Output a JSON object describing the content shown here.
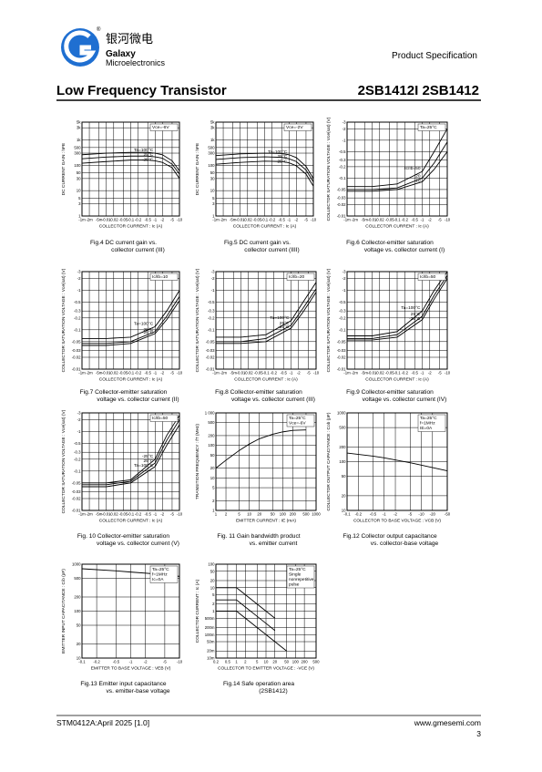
{
  "header": {
    "brand_cn": "银河微电",
    "brand": "Galaxy",
    "brand_sub": "Microelectronics",
    "registered": "®",
    "spec": "Product Specification",
    "title": "Low Frequency Transistor",
    "part": "2SB1412I 2SB1412"
  },
  "footer": {
    "doc": "STM0412A:April 2025 [1.0]",
    "url": "www.gmesemi.com",
    "page": "3"
  },
  "figures": [
    {
      "type": "line",
      "caption": [
        "Fig.4  DC current gain vs.",
        "collector current (III)"
      ],
      "ylabel": "DC CURRENT GAIN : hFE",
      "xlabel": "COLLECTOR CURRENT : Ic (A)",
      "notes": [
        "Vce=-6V"
      ],
      "log": true,
      "xlim": [
        -0.001,
        -10
      ],
      "ylim": [
        1,
        5000
      ],
      "xticks": [
        {
          "value": -0.001,
          "label": "-1m"
        },
        {
          "value": -0.002,
          "label": "-2m"
        },
        {
          "value": -0.005,
          "label": "-5m"
        },
        -0.01,
        -0.02,
        -0.05,
        -0.1,
        -0.2,
        -0.5,
        -1,
        -2,
        -5,
        -10
      ],
      "yticks": [
        1,
        3,
        5,
        10,
        30,
        50,
        100,
        300,
        500,
        {
          "value": 1000,
          "label": "1k"
        },
        {
          "value": 3000,
          "label": "3k"
        },
        {
          "value": 5000,
          "label": "5k"
        }
      ],
      "x": [
        -0.001,
        -0.01,
        -0.1,
        -0.5,
        -1,
        -2,
        -5,
        -10
      ],
      "series": [
        {
          "name": "Ta=100°C",
          "values": [
            260,
            300,
            320,
            320,
            300,
            260,
            150,
            60
          ]
        },
        {
          "name": "25°C",
          "values": [
            180,
            210,
            230,
            230,
            215,
            190,
            110,
            45
          ]
        },
        {
          "name": "-25°C",
          "values": [
            120,
            140,
            160,
            160,
            150,
            130,
            80,
            30
          ]
        }
      ]
    },
    {
      "type": "line",
      "caption": [
        "Fig.5  DC current gain vs.",
        "collector current (IIII)"
      ],
      "ylabel": "DC CURRENT GAIN : hFE",
      "xlabel": "COLLECTOR CURRENT : Ic (A)",
      "notes": [
        "Vce=-2V"
      ],
      "log": true,
      "xlim": [
        -0.001,
        -10
      ],
      "ylim": [
        1,
        5000
      ],
      "xticks": [
        {
          "value": -0.001,
          "label": "-1m"
        },
        {
          "value": -0.002,
          "label": "-2m"
        },
        {
          "value": -0.005,
          "label": "-5m"
        },
        -0.01,
        -0.02,
        -0.05,
        -0.1,
        -0.2,
        -0.5,
        -1,
        -2,
        -5,
        -10
      ],
      "yticks": [
        1,
        3,
        5,
        10,
        30,
        50,
        100,
        300,
        500,
        {
          "value": 1000,
          "label": "1k"
        },
        {
          "value": 3000,
          "label": "3k"
        },
        {
          "value": 5000,
          "label": "5k"
        }
      ],
      "x": [
        -0.001,
        -0.01,
        -0.1,
        -0.5,
        -1,
        -2,
        -5,
        -10
      ],
      "series": [
        {
          "name": "Ta=100°C",
          "values": [
            240,
            280,
            300,
            290,
            260,
            200,
            90,
            30
          ]
        },
        {
          "name": "25°C",
          "values": [
            170,
            200,
            215,
            205,
            180,
            140,
            65,
            22
          ]
        },
        {
          "name": "-25°C",
          "values": [
            110,
            130,
            145,
            140,
            125,
            95,
            45,
            15
          ]
        }
      ]
    },
    {
      "type": "line",
      "caption": [
        "Fig.6  Collector-emitter saturation",
        "voltage vs. collector current (I)"
      ],
      "ylabel": "COLLECTOR SATURATION VOLTAGE : Vce(sat) (V)",
      "xlabel": "COLLECTOR CURRENT : Ic (A)",
      "notes": [
        "Ta=25°C"
      ],
      "log": true,
      "xlim": [
        -0.001,
        -10
      ],
      "ylim": [
        -0.01,
        -3
      ],
      "xticks": [
        {
          "value": -0.001,
          "label": "-1m"
        },
        {
          "value": -0.002,
          "label": "-2m"
        },
        {
          "value": -0.005,
          "label": "-5m"
        },
        -0.01,
        -0.02,
        -0.05,
        -0.1,
        -0.2,
        -0.5,
        -1,
        -2,
        -5,
        -10
      ],
      "yticks": [
        -0.01,
        -0.02,
        -0.03,
        -0.05,
        -0.1,
        -0.2,
        -0.3,
        -0.5,
        -1,
        -2,
        -3
      ],
      "x": [
        -0.001,
        -0.01,
        -0.1,
        -1,
        -3,
        -10
      ],
      "series": [
        {
          "name": "Ic/Ib=50",
          "values": [
            -0.06,
            -0.06,
            -0.07,
            -0.15,
            -0.5,
            -2
          ]
        },
        {
          "name": "20",
          "values": [
            -0.05,
            -0.05,
            -0.055,
            -0.1,
            -0.25,
            -0.9
          ]
        },
        {
          "name": "10",
          "values": [
            -0.045,
            -0.045,
            -0.05,
            -0.08,
            -0.17,
            -0.5
          ]
        }
      ]
    },
    {
      "type": "line",
      "caption": [
        "Fig.7  Collector-emitter saturation",
        "voltage vs. collector current (II)"
      ],
      "ylabel": "COLLECTOR SATURATION VOLTAGE : Vce(sat) (V)",
      "xlabel": "COLLECTOR CURRENT : Ic (A)",
      "notes": [
        "Ic/Ib=10"
      ],
      "log": true,
      "xlim": [
        -0.001,
        -10
      ],
      "ylim": [
        -0.01,
        -3
      ],
      "xticks": [
        {
          "value": -0.001,
          "label": "-1m"
        },
        {
          "value": -0.002,
          "label": "-2m"
        },
        {
          "value": -0.005,
          "label": "-5m"
        },
        -0.01,
        -0.02,
        -0.05,
        -0.1,
        -0.2,
        -0.5,
        -1,
        -2,
        -5,
        -10
      ],
      "yticks": [
        -0.01,
        -0.02,
        -0.03,
        -0.05,
        -0.1,
        -0.2,
        -0.3,
        -0.5,
        -1,
        -2,
        -3
      ],
      "x": [
        -0.001,
        -0.01,
        -0.1,
        -1,
        -3,
        -10
      ],
      "series": [
        {
          "name": "Ta=100°C",
          "values": [
            -0.06,
            -0.06,
            -0.065,
            -0.12,
            -0.3,
            -1
          ]
        },
        {
          "name": "25°C",
          "values": [
            -0.045,
            -0.045,
            -0.05,
            -0.09,
            -0.22,
            -0.7
          ]
        },
        {
          "name": "-25°C",
          "values": [
            -0.04,
            -0.04,
            -0.045,
            -0.08,
            -0.18,
            -0.55
          ]
        }
      ]
    },
    {
      "type": "line",
      "caption": [
        "Fig.8  Collector-emitter saturation",
        "voltage vs. collector current (III)"
      ],
      "ylabel": "COLLECTOR SATURATION VOLTAGE : Vce(sat) (V)",
      "xlabel": "COLLECTOR CURRENT : Ic (A)",
      "notes": [
        "Ic/Ib=20"
      ],
      "log": true,
      "xlim": [
        -0.001,
        -10
      ],
      "ylim": [
        -0.01,
        -3
      ],
      "xticks": [
        {
          "value": -0.001,
          "label": "-1m"
        },
        {
          "value": -0.002,
          "label": "-2m"
        },
        {
          "value": -0.005,
          "label": "-5m"
        },
        -0.01,
        -0.02,
        -0.05,
        -0.1,
        -0.2,
        -0.5,
        -1,
        -2,
        -5,
        -10
      ],
      "yticks": [
        -0.01,
        -0.02,
        -0.03,
        -0.05,
        -0.1,
        -0.2,
        -0.3,
        -0.5,
        -1,
        -2,
        -3
      ],
      "x": [
        -0.001,
        -0.01,
        -0.1,
        -1,
        -3,
        -10
      ],
      "series": [
        {
          "name": "Ta=100°C",
          "values": [
            -0.065,
            -0.065,
            -0.075,
            -0.17,
            -0.5,
            -1.6
          ]
        },
        {
          "name": "25°C",
          "values": [
            -0.05,
            -0.05,
            -0.06,
            -0.13,
            -0.35,
            -1.1
          ]
        },
        {
          "name": "-25°C",
          "values": [
            -0.045,
            -0.045,
            -0.05,
            -0.11,
            -0.28,
            -0.9
          ]
        }
      ]
    },
    {
      "type": "line",
      "caption": [
        "Fig.9  Collector-emitter saturation",
        "voltage vs. collector current (IV)"
      ],
      "ylabel": "COLLECTOR SATURATION VOLTAGE : Vce(sat) (V)",
      "xlabel": "COLLECTOR CURRENT : Ic (A)",
      "notes": [
        "Ic/Ib=50"
      ],
      "log": true,
      "xlim": [
        -0.001,
        -10
      ],
      "ylim": [
        -0.01,
        -3
      ],
      "xticks": [
        {
          "value": -0.001,
          "label": "-1m"
        },
        {
          "value": -0.002,
          "label": "-2m"
        },
        {
          "value": -0.005,
          "label": "-5m"
        },
        -0.01,
        -0.02,
        -0.05,
        -0.1,
        -0.2,
        -0.5,
        -1,
        -2,
        -5,
        -10
      ],
      "yticks": [
        -0.01,
        -0.02,
        -0.03,
        -0.05,
        -0.1,
        -0.2,
        -0.3,
        -0.5,
        -1,
        -2,
        -3
      ],
      "x": [
        -0.001,
        -0.01,
        -0.1,
        -1,
        -3,
        -10
      ],
      "series": [
        {
          "name": "Ta=100°C",
          "values": [
            -0.07,
            -0.07,
            -0.09,
            -0.3,
            -1,
            -3
          ]
        },
        {
          "name": "25°C",
          "values": [
            -0.06,
            -0.06,
            -0.075,
            -0.22,
            -0.75,
            -2.4
          ]
        },
        {
          "name": "-25°C",
          "values": [
            -0.055,
            -0.055,
            -0.065,
            -0.18,
            -0.6,
            -2
          ]
        }
      ]
    },
    {
      "type": "line",
      "caption": [
        "Fig. 10  Collector-emitter saturation",
        "voltage vs. collector current (V)"
      ],
      "ylabel": "COLLECTOR SATURATION VOLTAGE : Vce(sat) (V)",
      "xlabel": "COLLECTOR CURRENT : Ic (A)",
      "notes": [
        "Ic/Ib=50"
      ],
      "log": true,
      "xlim": [
        -0.001,
        -10
      ],
      "ylim": [
        -0.01,
        -3
      ],
      "xticks": [
        {
          "value": -0.001,
          "label": "-1m"
        },
        {
          "value": -0.002,
          "label": "-2m"
        },
        {
          "value": -0.005,
          "label": "-5m"
        },
        -0.01,
        -0.02,
        -0.05,
        -0.1,
        -0.2,
        -0.5,
        -1,
        -2,
        -5,
        -10
      ],
      "yticks": [
        -0.01,
        -0.02,
        -0.03,
        -0.05,
        -0.1,
        -0.2,
        -0.3,
        -0.5,
        -1,
        -2,
        -3
      ],
      "x": [
        -0.001,
        -0.01,
        -0.1,
        -1,
        -3,
        -10
      ],
      "series": [
        {
          "name": "-25°C",
          "values": [
            -0.05,
            -0.05,
            -0.06,
            -0.2,
            -0.8,
            -2.6
          ]
        },
        {
          "name": "25°C",
          "values": [
            -0.045,
            -0.045,
            -0.055,
            -0.16,
            -0.6,
            -2
          ]
        },
        {
          "name": "Ta=100°C",
          "values": [
            -0.04,
            -0.04,
            -0.05,
            -0.13,
            -0.45,
            -1.5
          ]
        }
      ]
    },
    {
      "type": "line",
      "caption": [
        "Fig. 11  Gain bandwidth product",
        "vs. emitter current"
      ],
      "ylabel": "TRANSITION FREQUENCY : fT (MHz)",
      "xlabel": "EMITTER CURRENT : IE (mA)",
      "notes": [
        "Ta=25°C",
        "Vce=-6V"
      ],
      "log": true,
      "xlim": [
        1,
        1000
      ],
      "ylim": [
        1,
        1000
      ],
      "xticks": [
        1,
        2,
        5,
        10,
        20,
        50,
        100,
        200,
        500,
        1000
      ],
      "yticks": [
        1,
        2,
        5,
        10,
        20,
        50,
        100,
        200,
        500,
        {
          "value": 1000,
          "label": "1 000"
        }
      ],
      "x": [
        1,
        2,
        5,
        10,
        20,
        50,
        100,
        200,
        500
      ],
      "series": [
        {
          "values": [
            20,
            35,
            70,
            110,
            160,
            220,
            260,
            290,
            300
          ]
        }
      ]
    },
    {
      "type": "line",
      "caption": [
        "Fig.12  Collector output capacitance",
        "vs. collector-base voltage"
      ],
      "ylabel": "COLLECTOR OUTPUT CAPACITANCE : Cob (pF)",
      "xlabel": "COLLECTOR TO BASE VOLTAGE : VCB (V)",
      "notes": [
        "Ta=25°C",
        "f=1MHz",
        "IE=0A"
      ],
      "log": true,
      "xlim": [
        -0.1,
        -50
      ],
      "ylim": [
        10,
        1000
      ],
      "xticks": [
        -0.1,
        -0.2,
        -0.5,
        -1,
        -2,
        -5,
        -10,
        -20,
        -50
      ],
      "yticks": [
        10,
        20,
        50,
        100,
        200,
        500,
        1000
      ],
      "x": [
        -0.1,
        -0.5,
        -1,
        -5,
        -10,
        -50
      ],
      "series": [
        {
          "values": [
            150,
            130,
            120,
            95,
            85,
            65
          ]
        }
      ]
    },
    {
      "type": "line",
      "caption": [
        "Fig.13  Emitter input capacitance",
        "vs. emitter-base voltage"
      ],
      "ylabel": "EMITTER INPUT CAPACITANCE : Cib (pF)",
      "xlabel": "EMITTER TO BASE VOLTAGE : VEB (V)",
      "notes": [
        "Ta=25°C",
        "f=1MHz",
        "Ic=0A"
      ],
      "log": true,
      "xlim": [
        -0.1,
        -10
      ],
      "ylim": [
        10,
        1000
      ],
      "xticks": [
        -0.1,
        -0.2,
        -0.5,
        -1,
        -2,
        -5,
        -10
      ],
      "yticks": [
        10,
        20,
        50,
        100,
        200,
        500,
        1000
      ],
      "x": [
        -0.1,
        -0.5,
        -1,
        -5,
        -10
      ],
      "series": [
        {
          "values": [
            800,
            720,
            680,
            600,
            550
          ]
        }
      ]
    },
    {
      "type": "line",
      "caption": [
        "Fig.14  Safe operation area",
        "(2SB1412)"
      ],
      "ylabel": "COLLECTOR CURRENT : Ic (A)",
      "xlabel": "COLLECTOR TO EMITTER VOLTAGE : -VCE (V)",
      "notes": [
        "Ta=25°C",
        "Single",
        "nonrepetitive",
        "pulse"
      ],
      "log": true,
      "xlim": [
        0.2,
        500
      ],
      "ylim": [
        0.01,
        100
      ],
      "xticks": [
        0.2,
        0.5,
        1,
        2,
        5,
        10,
        20,
        50,
        100,
        200,
        500
      ],
      "yticks": [
        {
          "value": 0.01,
          "label": "10m"
        },
        {
          "value": 0.02,
          "label": "20m"
        },
        {
          "value": 0.05,
          "label": "50m"
        },
        {
          "value": 0.1,
          "label": "100m"
        },
        {
          "value": 0.2,
          "label": "200m"
        },
        {
          "value": 0.5,
          "label": "500m"
        },
        1,
        2,
        5,
        10,
        20,
        50,
        100
      ],
      "x": [
        0.2,
        1,
        2,
        5,
        10,
        20,
        50
      ],
      "series": [
        {
          "values": [
            10,
            10,
            5,
            2,
            1,
            0.5,
            null
          ]
        },
        {
          "values": [
            3,
            3,
            1.5,
            0.6,
            0.3,
            0.15,
            null
          ]
        },
        {
          "values": [
            1,
            1,
            0.5,
            0.2,
            0.1,
            0.05,
            0.02
          ]
        }
      ]
    }
  ]
}
